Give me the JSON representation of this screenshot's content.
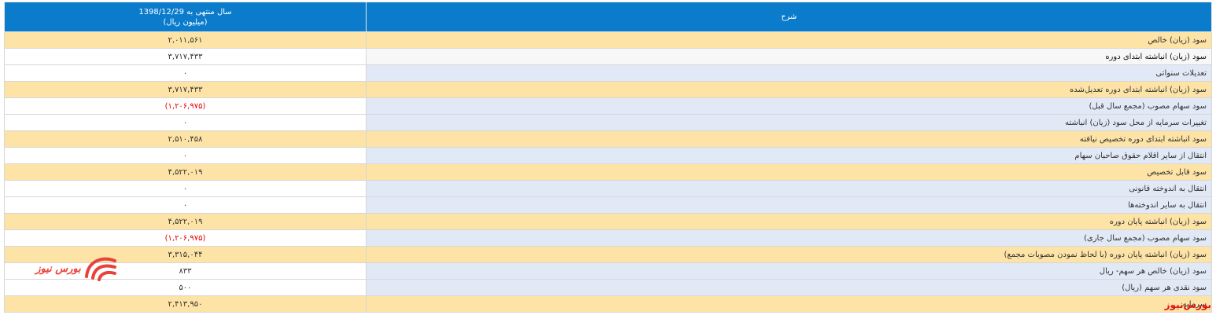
{
  "table": {
    "header": {
      "value_title": "سال منتهی به 1398/12/29",
      "value_unit": "(میلیون ریال)",
      "description_title": "شرح"
    },
    "rows": [
      {
        "description": "سود (زیان) خالص",
        "value": "۲,۰۱۱,۵۶۱",
        "shade": "yellow"
      },
      {
        "description": "سود (زیان) انباشته ابتدای دوره",
        "value": "۳,۷۱۷,۴۳۳",
        "shade": "white"
      },
      {
        "description": "تعدیلات سنواتی",
        "value": "۰",
        "shade": "blue"
      },
      {
        "description": "سود (زیان) انباشته ابتدای دوره تعدیل‌شده",
        "value": "۳,۷۱۷,۴۳۳",
        "shade": "yellow"
      },
      {
        "description": "سود سهام مصوب (مجمع سال قبل)",
        "value": "(۱,۲۰۶,۹۷۵)",
        "shade": "blue"
      },
      {
        "description": "تغییرات سرمایه از محل سود (زیان) انباشته",
        "value": "۰",
        "shade": "blue"
      },
      {
        "description": "سود انباشته ابتدای دوره تخصیص نیافته",
        "value": "۲,۵۱۰,۴۵۸",
        "shade": "yellow"
      },
      {
        "description": "انتقال از سایر اقلام حقوق صاحبان سهام",
        "value": "۰",
        "shade": "blue"
      },
      {
        "description": "سود قابل تخصیص",
        "value": "۴,۵۲۲,۰۱۹",
        "shade": "yellow"
      },
      {
        "description": "انتقال به اندوخته قانونی",
        "value": "۰",
        "shade": "blue"
      },
      {
        "description": "انتقال به سایر اندوخته‌ها",
        "value": "۰",
        "shade": "blue"
      },
      {
        "description": "سود (زیان) انباشته پایان دوره",
        "value": "۴,۵۲۲,۰۱۹",
        "shade": "yellow"
      },
      {
        "description": "سود سهام مصوب (مجمع سال جاری)",
        "value": "(۱,۲۰۶,۹۷۵)",
        "shade": "blue"
      },
      {
        "description": "سود (زیان) انباشته پایان دوره (با لحاظ نمودن مصوبات مجمع)",
        "value": "۳,۳۱۵,۰۴۴",
        "shade": "yellow"
      },
      {
        "description": "سود (زیان) خالص هر سهم- ریال",
        "value": "۸۳۳",
        "shade": "blue"
      },
      {
        "description": "سود نقدی هر سهم (ریال)",
        "value": "۵۰۰",
        "shade": "blue"
      },
      {
        "description": "سرمایه",
        "value": "۲,۴۱۳,۹۵۰",
        "shade": "yellow"
      }
    ]
  },
  "watermark": "بورس‌نیوز",
  "logo_text": "بورس نیوز"
}
